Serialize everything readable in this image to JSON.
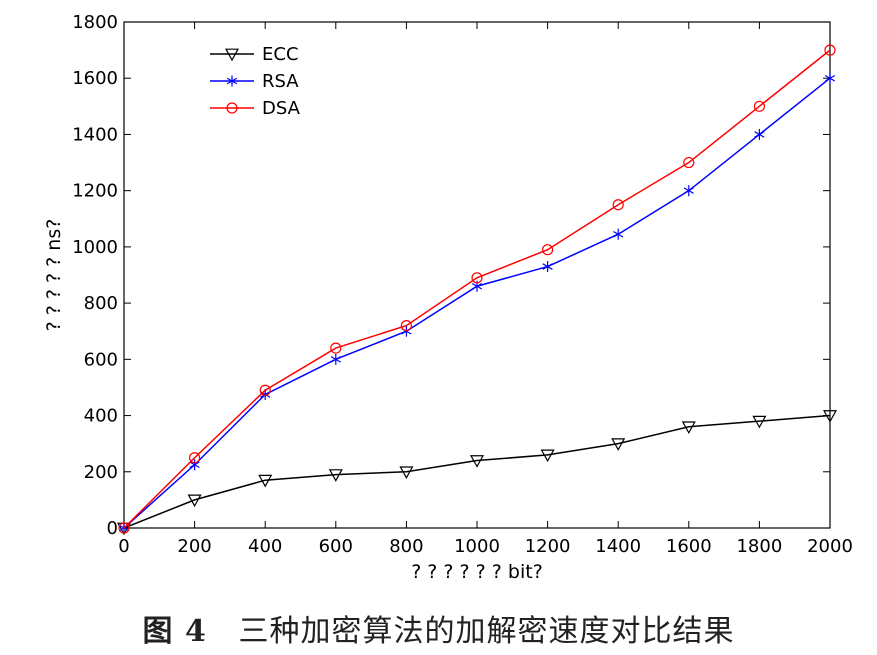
{
  "chart_data": {
    "type": "line",
    "xlabel": "? ? ? ? ? ? bit?",
    "ylabel": "? ? ? ? ? ns?",
    "xlim": [
      0,
      2000
    ],
    "ylim": [
      0,
      1800
    ],
    "xticks": [
      0,
      200,
      400,
      600,
      800,
      1000,
      1200,
      1400,
      1600,
      1800,
      2000
    ],
    "yticks": [
      0,
      200,
      400,
      600,
      800,
      1000,
      1200,
      1400,
      1600,
      1800
    ],
    "x": [
      0,
      200,
      400,
      600,
      800,
      1000,
      1200,
      1400,
      1600,
      1800,
      2000
    ],
    "legend_position": "top-left",
    "grid": false,
    "series": [
      {
        "name": "ECC",
        "color": "#000000",
        "marker": "triangle-down",
        "values": [
          0,
          100,
          170,
          190,
          200,
          240,
          260,
          300,
          360,
          380,
          400
        ]
      },
      {
        "name": "RSA",
        "color": "#0000ff",
        "marker": "asterisk",
        "values": [
          0,
          225,
          475,
          600,
          700,
          860,
          930,
          1045,
          1200,
          1400,
          1600
        ]
      },
      {
        "name": "DSA",
        "color": "#ff0000",
        "marker": "circle",
        "values": [
          0,
          250,
          490,
          640,
          720,
          890,
          990,
          1150,
          1300,
          1500,
          1700
        ]
      }
    ]
  },
  "caption": {
    "figure_number": "图 4",
    "text": "三种加密算法的加解密速度对比结果"
  }
}
